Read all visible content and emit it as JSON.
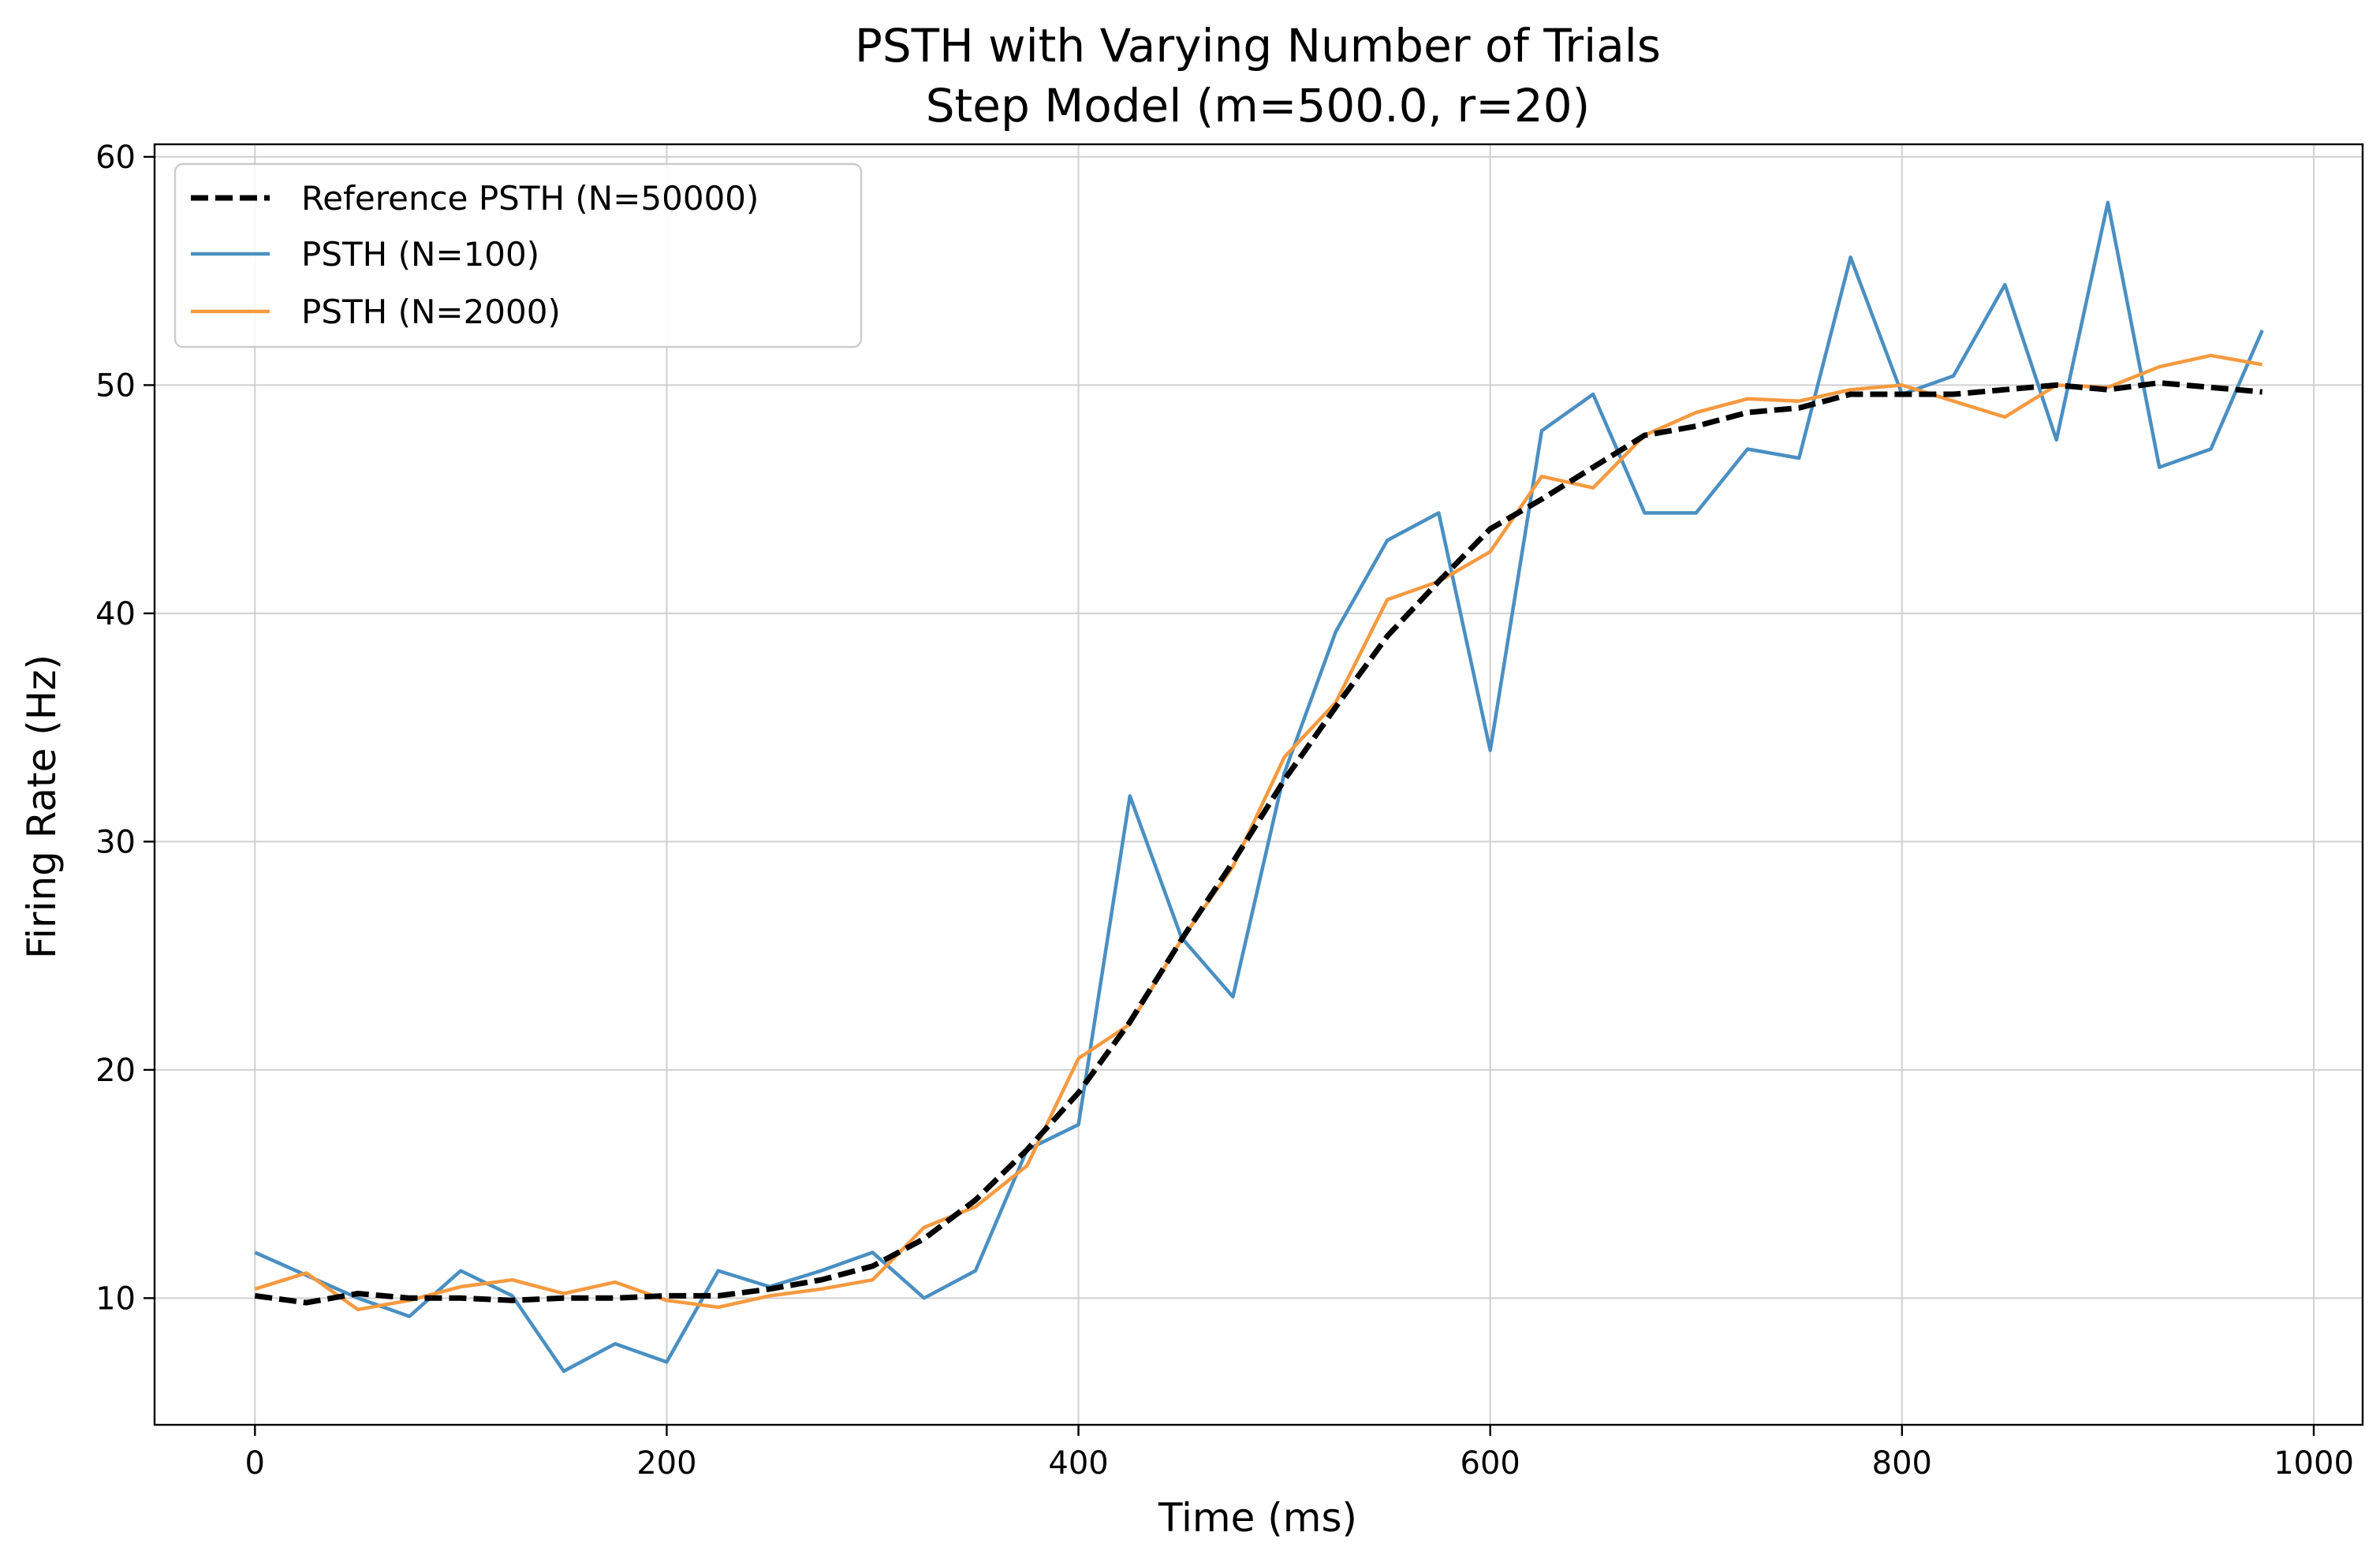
{
  "chart_data": {
    "type": "line",
    "title": "PSTH with Varying Number of Trials",
    "subtitle": "Step Model (m=500.0, r=20)",
    "xlabel": "Time (ms)",
    "ylabel": "Firing Rate (Hz)",
    "xlim": [
      -48.75,
      1023.75
    ],
    "ylim": [
      4.45,
      60.55
    ],
    "xticks": [
      0,
      200,
      400,
      600,
      800,
      1000
    ],
    "yticks": [
      10,
      20,
      30,
      40,
      50,
      60
    ],
    "grid": true,
    "legend_position": "upper-left",
    "x": [
      0,
      25,
      50,
      75,
      100,
      125,
      150,
      175,
      200,
      225,
      250,
      275,
      300,
      325,
      350,
      375,
      400,
      425,
      450,
      475,
      500,
      525,
      550,
      575,
      600,
      625,
      650,
      675,
      700,
      725,
      750,
      775,
      800,
      825,
      850,
      875,
      900,
      925,
      950,
      975
    ],
    "series": [
      {
        "name": "Reference PSTH (N=50000)",
        "color": "#000000",
        "style": "dashed",
        "values": [
          10.1,
          9.8,
          10.2,
          10.0,
          10.0,
          9.9,
          10.0,
          10.0,
          10.1,
          10.1,
          10.4,
          10.8,
          11.4,
          12.6,
          14.3,
          16.5,
          19.0,
          22.1,
          25.7,
          29.1,
          32.7,
          35.9,
          39.0,
          41.4,
          43.7,
          45.0,
          46.4,
          47.8,
          48.2,
          48.8,
          49.0,
          49.6,
          49.6,
          49.6,
          49.8,
          50.0,
          49.8,
          50.1,
          49.9,
          49.7
        ]
      },
      {
        "name": "PSTH (N=100)",
        "color": "#4a8fc2",
        "style": "solid",
        "values": [
          12.0,
          11.0,
          10.0,
          9.2,
          11.2,
          10.1,
          6.8,
          8.0,
          7.2,
          11.2,
          10.5,
          11.2,
          12.0,
          10.0,
          11.2,
          16.5,
          17.6,
          32.0,
          25.8,
          23.2,
          33.0,
          39.2,
          43.2,
          44.4,
          34.0,
          48.0,
          49.6,
          44.4,
          44.4,
          47.2,
          46.8,
          55.6,
          49.6,
          50.4,
          54.4,
          47.6,
          58.0,
          46.4,
          47.2,
          52.4
        ]
      },
      {
        "name": "PSTH (N=2000)",
        "color": "#f59a40",
        "style": "solid",
        "values": [
          10.4,
          11.1,
          9.5,
          9.9,
          10.5,
          10.8,
          10.2,
          10.7,
          9.9,
          9.6,
          10.1,
          10.4,
          10.8,
          13.1,
          14.0,
          15.8,
          20.5,
          22.0,
          25.7,
          28.9,
          33.7,
          36.1,
          40.6,
          41.4,
          42.7,
          46.0,
          45.5,
          47.8,
          48.8,
          49.4,
          49.3,
          49.8,
          50.0,
          49.3,
          48.6,
          50.0,
          49.9,
          50.8,
          51.3,
          50.9
        ]
      }
    ]
  }
}
